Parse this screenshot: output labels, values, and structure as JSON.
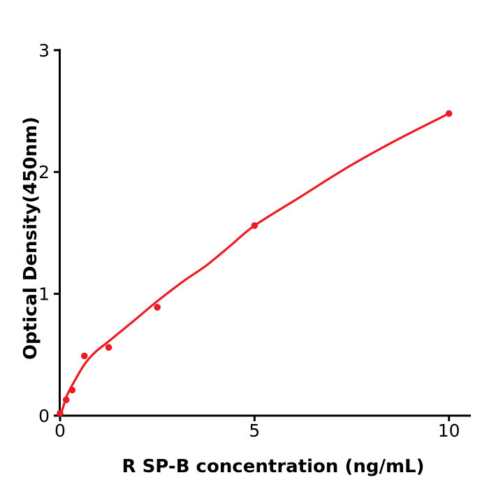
{
  "chart_data": {
    "type": "scatter",
    "xlabel": "R  SP-B concentration (ng/mL)",
    "ylabel": "Optical Density(450nm)",
    "x_ticks": [
      0,
      5,
      10
    ],
    "y_ticks": [
      0,
      1,
      2,
      3
    ],
    "xlim": [
      0,
      10.55
    ],
    "ylim": [
      0,
      3.01
    ],
    "x": [
      0,
      0.156,
      0.3125,
      0.625,
      1.25,
      2.5,
      5,
      10
    ],
    "od": [
      0.02,
      0.13,
      0.21,
      0.49,
      0.56,
      0.89,
      1.56,
      2.48
    ],
    "curve": [
      [
        0,
        0.0
      ],
      [
        0.08,
        0.07
      ],
      [
        0.156,
        0.15
      ],
      [
        0.3125,
        0.25
      ],
      [
        0.625,
        0.42
      ],
      [
        0.9,
        0.52
      ],
      [
        1.25,
        0.61
      ],
      [
        1.9,
        0.78
      ],
      [
        2.5,
        0.94
      ],
      [
        3.2,
        1.11
      ],
      [
        3.75,
        1.23
      ],
      [
        4.4,
        1.4
      ],
      [
        5,
        1.56
      ],
      [
        6.2,
        1.8
      ],
      [
        7.4,
        2.04
      ],
      [
        8.7,
        2.27
      ],
      [
        10,
        2.48
      ]
    ],
    "marker_color": "#ed1c24",
    "line_color": "#ed1c24",
    "axis_color": "#000000",
    "background_color": "#ffffff"
  }
}
